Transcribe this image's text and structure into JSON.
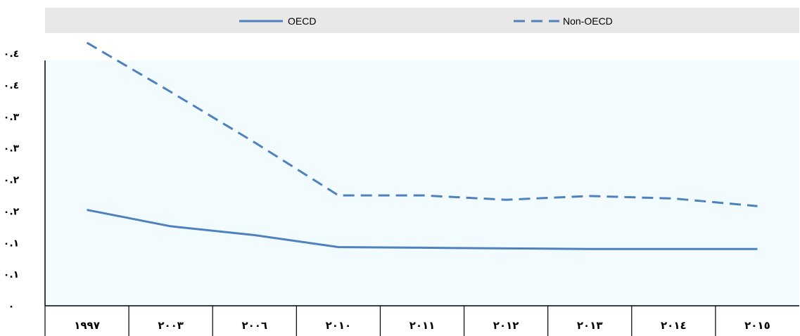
{
  "chart_data": {
    "type": "line",
    "categories": [
      "1997",
      "2003",
      "2006",
      "2010",
      "2011",
      "2012",
      "2013",
      "2014",
      "2015"
    ],
    "category_labels": [
      "١٩٩٧",
      "٢٠٠٣",
      "٢٠٠٦",
      "٢٠١٠",
      "٢٠١١",
      "٢٠١٢",
      "٢٠١٣",
      "٢٠١٤",
      "٢٠١٥"
    ],
    "series": [
      {
        "name": "OECD",
        "style": "solid",
        "color": "#4f81bd",
        "values": [
          0.152,
          0.126,
          0.112,
          0.093,
          0.092,
          0.091,
          0.09,
          0.09,
          0.09
        ]
      },
      {
        "name": "Non-OECD",
        "style": "dashed",
        "color": "#4f81bd",
        "values": [
          0.417,
          0.339,
          0.259,
          0.175,
          0.175,
          0.168,
          0.174,
          0.17,
          0.158
        ]
      }
    ],
    "ylim": [
      0,
      0.4
    ],
    "yticks": [
      0,
      0.05,
      0.1,
      0.15,
      0.2,
      0.25,
      0.3,
      0.35,
      0.4
    ],
    "ytick_labels": [
      "٠",
      "٠.١",
      "٠.١",
      "٠.٢",
      "٠.٢",
      "٠.٣",
      "٠.٣",
      "٠.٤",
      "٠.٤"
    ],
    "grid": false,
    "legend_position": "top",
    "plot_background": "#f2fcfe",
    "legend_background": "#e8e8e8"
  }
}
